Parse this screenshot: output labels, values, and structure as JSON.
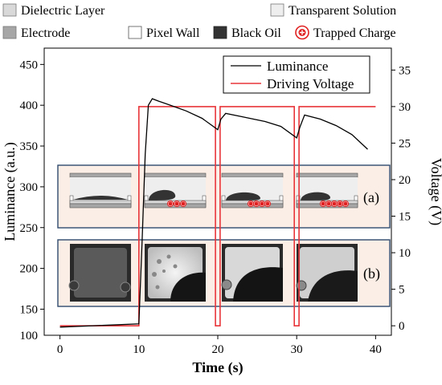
{
  "legend_top": {
    "items": [
      {
        "label": "Dielectric Layer",
        "color": "#d9d9d9"
      },
      {
        "label": "Transparent Solution",
        "color": "#eeeeee"
      },
      {
        "label": "Electrode",
        "color": "#a6a6a6"
      },
      {
        "label": "Pixel Wall",
        "color": "#ffffff"
      },
      {
        "label": "Black Oil",
        "color": "#333333"
      },
      {
        "label": "Trapped Charge",
        "color": "#e02020"
      }
    ]
  },
  "panel_labels": {
    "a": "(a)",
    "b": "(b)"
  },
  "chart_data": {
    "type": "line",
    "xlabel": "Time (s)",
    "ylabel_left": "Luminance (a.u.)",
    "ylabel_right": "Voltage (V)",
    "xlim": [
      -2,
      42
    ],
    "xticks": [
      0,
      10,
      20,
      30,
      40
    ],
    "ylim_left": [
      118,
      470
    ],
    "yticks_left": [
      100,
      150,
      200,
      250,
      300,
      350,
      400,
      450
    ],
    "ylim_right": [
      -1.3,
      38.0
    ],
    "yticks_right": [
      0,
      5,
      10,
      15,
      20,
      25,
      30,
      35
    ],
    "legend": {
      "position": "top-right",
      "entries": [
        "Luminance",
        "Driving Voltage"
      ]
    },
    "series": [
      {
        "name": "Luminance",
        "axis": "left",
        "color": "#000000",
        "x": [
          0,
          10,
          10.4,
          10.8,
          11.2,
          11.7,
          12.5,
          14,
          16,
          18,
          20,
          20.4,
          21,
          23,
          26,
          28,
          30,
          30.4,
          31,
          33,
          35,
          37,
          39
        ],
        "y": [
          128,
          132,
          230,
          340,
          400,
          408,
          405,
          400,
          393,
          384,
          370,
          383,
          390,
          386,
          380,
          374,
          360,
          373,
          388,
          383,
          375,
          364,
          346
        ]
      },
      {
        "name": "Driving Voltage",
        "axis": "right",
        "color": "#e8353a",
        "x": [
          0,
          10,
          10,
          19.7,
          19.7,
          20.3,
          20.3,
          29.7,
          29.7,
          30.3,
          30.3,
          40
        ],
        "y": [
          0,
          0,
          30,
          30,
          0,
          0,
          30,
          30,
          0,
          0,
          30,
          30
        ]
      }
    ]
  }
}
